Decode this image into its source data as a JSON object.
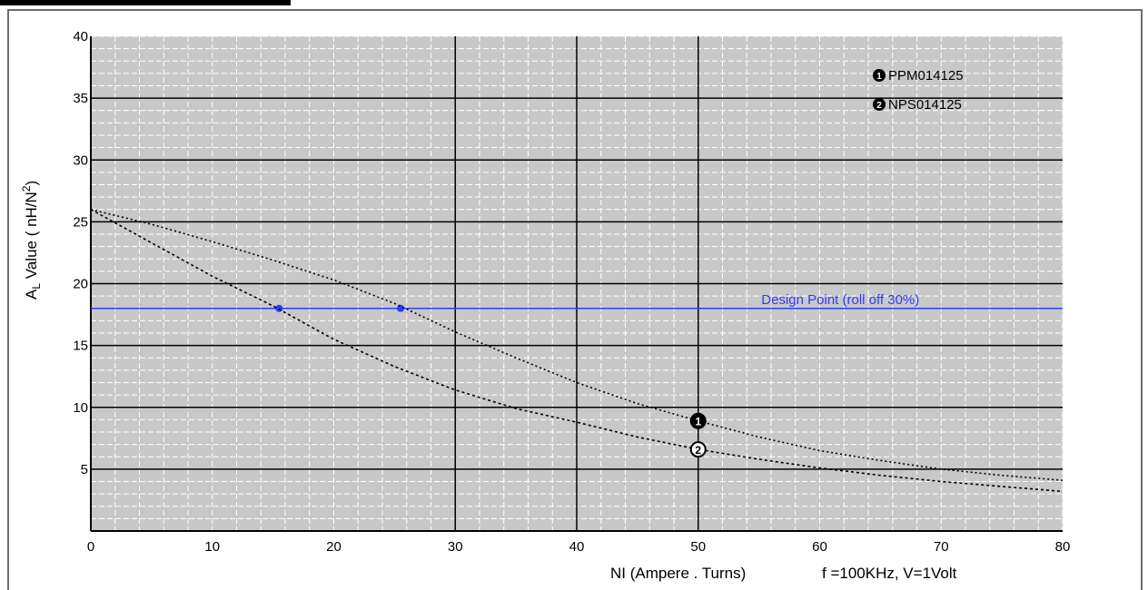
{
  "chart_data": {
    "type": "line",
    "title": "",
    "xlabel": "NI (Ampere . Turns)",
    "ylabel_main": "A",
    "ylabel_sub": "L",
    "ylabel_rest": " Value ( nH/N",
    "ylabel_sup": "2",
    "ylabel_end": ")",
    "condition": "f =100KHz, V=1Volt",
    "xlim": [
      0,
      80
    ],
    "ylim": [
      0,
      40
    ],
    "x_ticks": [
      0,
      10,
      20,
      30,
      40,
      50,
      60,
      70,
      80
    ],
    "y_ticks": [
      5,
      10,
      15,
      20,
      25,
      30,
      35,
      40
    ],
    "grid": true,
    "legend_position": "top-right",
    "series": [
      {
        "name": "PPM014125",
        "marker_label": "1",
        "x": [
          0,
          5,
          10,
          15,
          20,
          25,
          30,
          35,
          40,
          45,
          50,
          55,
          60,
          65,
          70,
          75,
          80
        ],
        "y": [
          26,
          24.8,
          23.4,
          21.9,
          20.3,
          18.4,
          16.1,
          14.0,
          12.0,
          10.3,
          8.9,
          7.6,
          6.5,
          5.7,
          5.0,
          4.5,
          4.1
        ]
      },
      {
        "name": "NPS014125",
        "marker_label": "2",
        "x": [
          0,
          5,
          10,
          15,
          20,
          25,
          30,
          35,
          40,
          45,
          50,
          55,
          60,
          65,
          70,
          75,
          80
        ],
        "y": [
          26,
          23.3,
          20.6,
          18.2,
          15.5,
          13.3,
          11.4,
          9.9,
          8.8,
          7.6,
          6.6,
          5.8,
          5.1,
          4.5,
          4.0,
          3.6,
          3.2
        ]
      }
    ],
    "design_point": {
      "label": "Design Point (roll off 30%)",
      "y": 18,
      "points_x": [
        15.5,
        25.5
      ]
    },
    "series_marker_x": 50,
    "colors": {
      "background": "#c8c8c8",
      "curve": "#000000",
      "design_line": "#2a3cff",
      "major_grid": "#000000",
      "minor_grid": "#ffffff"
    }
  }
}
